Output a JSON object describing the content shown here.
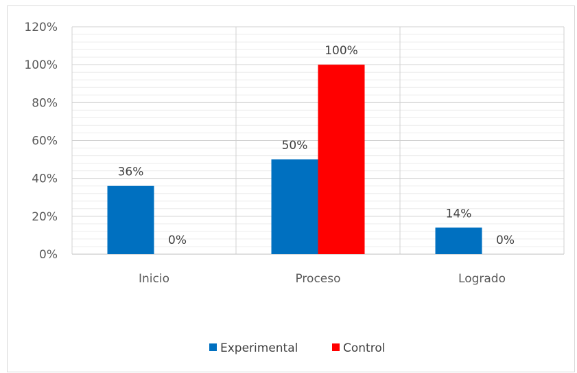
{
  "chart_data": {
    "type": "bar",
    "categories": [
      "Inicio",
      "Proceso",
      "Logrado"
    ],
    "series": [
      {
        "name": "Experimental",
        "values": [
          36,
          50,
          14
        ],
        "labels": [
          "36%",
          "50%",
          "14%"
        ],
        "color": "#0070c0"
      },
      {
        "name": "Control",
        "values": [
          0,
          100,
          0
        ],
        "labels": [
          "0%",
          "100%",
          "0%"
        ],
        "color": "#ff0000"
      }
    ],
    "ylim": [
      0,
      120
    ],
    "yticks": [
      {
        "value": 0,
        "label": "0%"
      },
      {
        "value": 20,
        "label": "20%"
      },
      {
        "value": 40,
        "label": "40%"
      },
      {
        "value": 60,
        "label": "60%"
      },
      {
        "value": 80,
        "label": "80%"
      },
      {
        "value": 100,
        "label": "100%"
      },
      {
        "value": 120,
        "label": "120%"
      }
    ],
    "minor_step": 4,
    "grid": true,
    "legend": "bottom",
    "title": "",
    "xlabel": "",
    "ylabel": ""
  }
}
